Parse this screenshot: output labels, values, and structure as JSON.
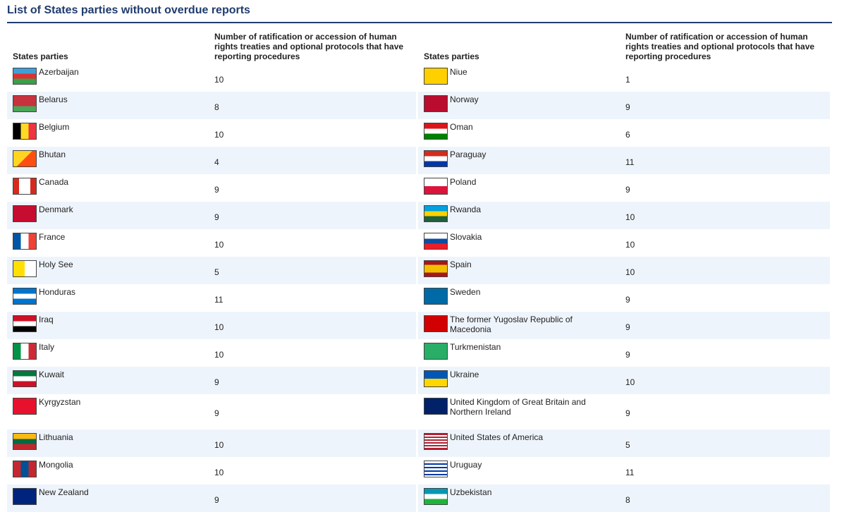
{
  "title": "List of States parties without overdue reports",
  "left_table": {
    "header": [
      "States parties",
      "Number of ratification or accession of human rights treaties and optional protocols that have reporting procedures"
    ],
    "rows": [
      [
        "Azerbaijan",
        10
      ],
      [
        "Belarus",
        8
      ],
      [
        "Belgium",
        10
      ],
      [
        "Bhutan",
        4
      ],
      [
        "Canada",
        9
      ],
      [
        "Denmark",
        9
      ],
      [
        "France",
        10
      ],
      [
        "Holy See",
        5
      ],
      [
        "Honduras",
        11
      ],
      [
        "Iraq",
        10
      ],
      [
        "Italy",
        10
      ],
      [
        "Kuwait",
        9
      ],
      [
        "Kyrgyzstan",
        9
      ],
      [
        "Lithuania",
        10
      ],
      [
        "Mongolia",
        10
      ],
      [
        "New Zealand",
        9
      ]
    ]
  },
  "right_table": {
    "header": [
      "States parties",
      "Number of ratification or accession of human rights treaties and optional protocols that have reporting procedures"
    ],
    "rows": [
      [
        "Niue",
        1
      ],
      [
        "Norway",
        9
      ],
      [
        "Oman",
        6
      ],
      [
        "Paraguay",
        11
      ],
      [
        "Poland",
        9
      ],
      [
        "Rwanda",
        10
      ],
      [
        "Slovakia",
        10
      ],
      [
        "Spain",
        10
      ],
      [
        "Sweden",
        9
      ],
      [
        "The former Yugoslav Republic of Macedonia",
        9
      ],
      [
        "Turkmenistan",
        9
      ],
      [
        "Ukraine",
        10
      ],
      [
        "United Kingdom of Great Britain and Northern Ireland",
        9
      ],
      [
        "United States of America",
        5
      ],
      [
        "Uruguay",
        11
      ],
      [
        "Uzbekistan",
        8
      ]
    ]
  }
}
